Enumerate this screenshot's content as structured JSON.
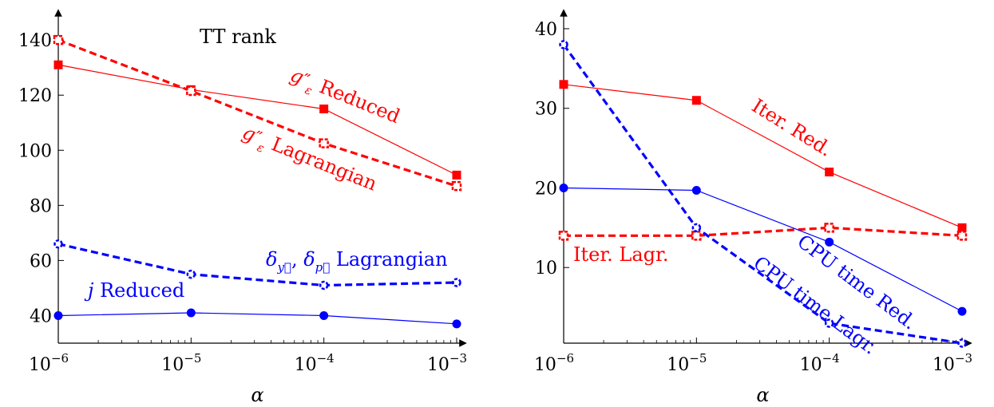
{
  "colors": {
    "red": "#ff0000",
    "blue": "#0000ff",
    "axis": "#000000"
  },
  "chart_data": [
    {
      "type": "line",
      "xscale": "log",
      "x": [
        1e-06,
        1e-05,
        0.0001,
        0.001
      ],
      "xticks": [
        {
          "base": "10",
          "exp": "−6"
        },
        {
          "base": "10",
          "exp": "−5"
        },
        {
          "base": "10",
          "exp": "−4"
        },
        {
          "base": "10",
          "exp": "−3"
        }
      ],
      "yticks": [
        "40",
        "60",
        "80",
        "100",
        "120",
        "140"
      ],
      "ylim": [
        30,
        147
      ],
      "xlabel": "α",
      "title": "TT rank",
      "grid": false,
      "series": [
        {
          "name": "g″ε Reduced",
          "color": "#ff0000",
          "style": "solid",
          "marker": "square",
          "values": [
            131,
            122,
            115,
            91
          ]
        },
        {
          "name": "g″ε Lagrangian",
          "color": "#ff0000",
          "style": "dashed",
          "marker": "open-square",
          "values": [
            140,
            121.5,
            102.5,
            87
          ]
        },
        {
          "name": "δy, δp Lagrangian",
          "color": "#0000ff",
          "style": "dashed",
          "marker": "open-circle",
          "values": [
            66,
            55,
            51,
            52
          ]
        },
        {
          "name": "j Reduced",
          "color": "#0000ff",
          "style": "solid",
          "marker": "circle",
          "values": [
            40,
            41,
            40,
            37
          ]
        }
      ],
      "annotations": {
        "red_reduced": {
          "base": "g",
          "prime": "″",
          "sub": "ε",
          "rest": " Reduced"
        },
        "red_lagrangian": {
          "base": "g",
          "prime": "″",
          "sub": "ε",
          "rest": " Lagrangian"
        },
        "blue_lagrangian": {
          "d1": "δ",
          "s1": "y⃗",
          "sep": ", ",
          "d2": "δ",
          "s2": "p⃗",
          "rest": " Lagrangian"
        },
        "blue_reduced": {
          "var": "j",
          "rest": " Reduced"
        }
      }
    },
    {
      "type": "line",
      "xscale": "log",
      "x": [
        1e-06,
        1e-05,
        0.0001,
        0.001
      ],
      "xticks": [
        {
          "base": "10",
          "exp": "−6"
        },
        {
          "base": "10",
          "exp": "−5"
        },
        {
          "base": "10",
          "exp": "−4"
        },
        {
          "base": "10",
          "exp": "−3"
        }
      ],
      "yticks": [
        "10",
        "20",
        "30",
        "40"
      ],
      "ylim": [
        0.5,
        41
      ],
      "xlabel": "α",
      "grid": false,
      "series": [
        {
          "name": "Iter. Red.",
          "color": "#ff0000",
          "style": "solid",
          "marker": "square",
          "values": [
            33,
            31,
            22,
            15
          ]
        },
        {
          "name": "Iter. Lagr.",
          "color": "#ff0000",
          "style": "dashed",
          "marker": "open-square",
          "values": [
            14,
            14,
            15,
            14
          ]
        },
        {
          "name": "CPU time Red.",
          "color": "#0000ff",
          "style": "solid",
          "marker": "circle",
          "values": [
            20,
            19.7,
            13.2,
            4.5
          ]
        },
        {
          "name": "CPU time Lagr.",
          "color": "#0000ff",
          "style": "dashed",
          "marker": "open-circle",
          "values": [
            38,
            15,
            3,
            0.5
          ]
        }
      ],
      "annotations": {
        "iter_red": "Iter. Red.",
        "iter_lagr": "Iter. Lagr.",
        "cpu_red": "CPU time Red.",
        "cpu_lagr": "CPU time Lagr."
      }
    }
  ]
}
